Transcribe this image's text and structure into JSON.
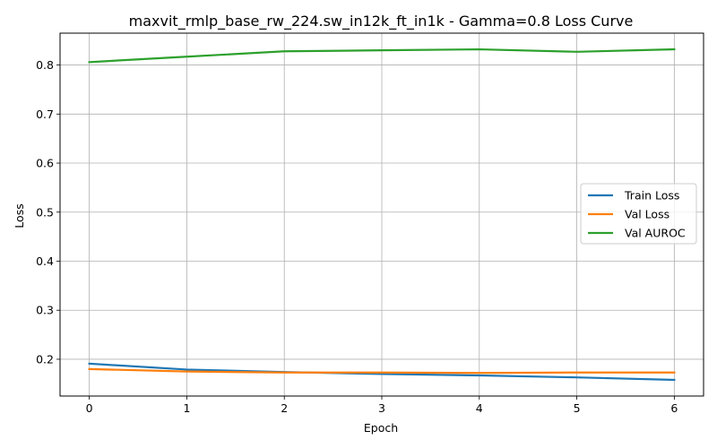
{
  "chart_data": {
    "type": "line",
    "title": "maxvit_rmlp_base_rw_224.sw_in12k_ft_in1k - Gamma=0.8 Loss Curve",
    "xlabel": "Epoch",
    "ylabel": "Loss",
    "x": [
      0,
      1,
      2,
      3,
      4,
      5,
      6
    ],
    "xticks": [
      "0",
      "1",
      "2",
      "3",
      "4",
      "5",
      "6"
    ],
    "yticks": [
      "0.2",
      "0.3",
      "0.4",
      "0.5",
      "0.6",
      "0.7",
      "0.8"
    ],
    "xlim": [
      -0.3,
      6.3
    ],
    "ylim": [
      0.125,
      0.865
    ],
    "grid": true,
    "legend_position": "center-right",
    "series": [
      {
        "name": "Train Loss",
        "color": "#1f77b4",
        "values": [
          0.191,
          0.179,
          0.174,
          0.17,
          0.167,
          0.163,
          0.158
        ]
      },
      {
        "name": "Val Loss",
        "color": "#ff7f0e",
        "values": [
          0.18,
          0.175,
          0.173,
          0.173,
          0.172,
          0.173,
          0.173
        ]
      },
      {
        "name": "Val AUROC",
        "color": "#2ca02c",
        "values": [
          0.806,
          0.817,
          0.828,
          0.83,
          0.832,
          0.827,
          0.832
        ]
      }
    ]
  }
}
